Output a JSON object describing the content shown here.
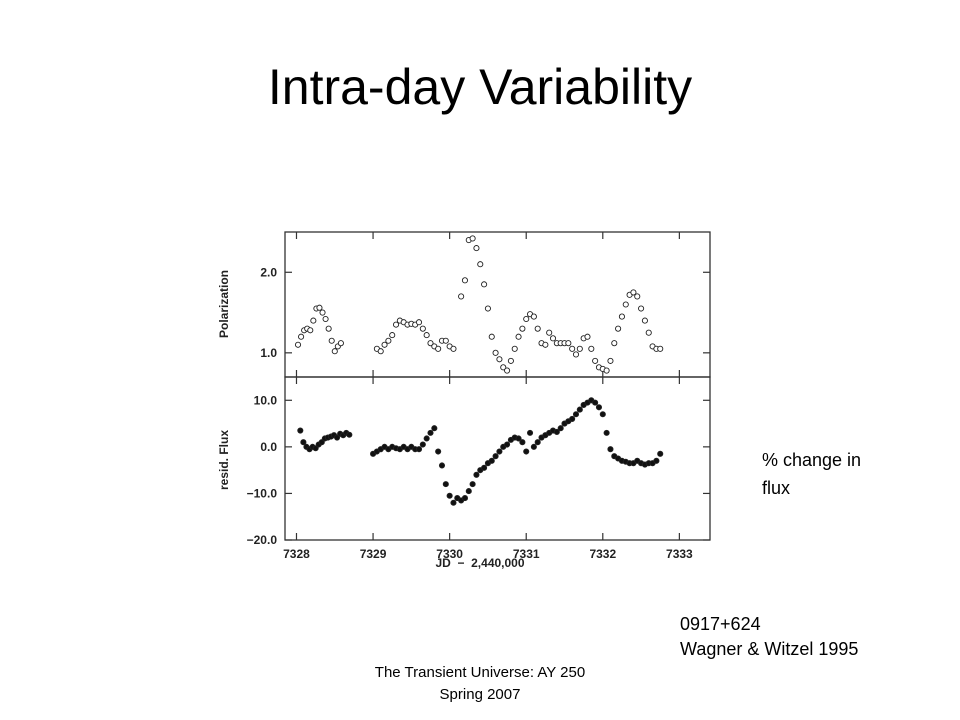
{
  "slide": {
    "title": "Intra-day Variability",
    "flux_note_line1": "% change in",
    "flux_note_line2": "flux",
    "source_object": "0917+624",
    "source_reference": "Wagner & Witzel 1995",
    "footer_line1": "The Transient Universe: AY 250",
    "footer_line2": "Spring 2007"
  },
  "chart_data": [
    {
      "type": "scatter",
      "panel": "top",
      "xlabel": "",
      "ylabel": "Polarization",
      "xlim": [
        7327.85,
        7333.4
      ],
      "ylim": [
        0.7,
        2.5
      ],
      "yticks": [
        1.0,
        2.0
      ],
      "ytick_labels": [
        "1.0",
        "2.0"
      ],
      "marker": "open-circle",
      "series": [
        {
          "x": [
            7328.02,
            7328.06,
            7328.1,
            7328.14,
            7328.18,
            7328.22,
            7328.26,
            7328.3,
            7328.34,
            7328.38,
            7328.42,
            7328.46,
            7328.5,
            7328.54,
            7328.58,
            7329.05,
            7329.1,
            7329.15,
            7329.2,
            7329.25,
            7329.3,
            7329.35,
            7329.4,
            7329.45,
            7329.5,
            7329.55,
            7329.6,
            7329.65,
            7329.7,
            7329.75,
            7329.8,
            7329.85,
            7329.9,
            7329.95,
            7330.0,
            7330.05,
            7330.15,
            7330.2,
            7330.25,
            7330.3,
            7330.35,
            7330.4,
            7330.45,
            7330.5,
            7330.55,
            7330.6,
            7330.65,
            7330.7,
            7330.75,
            7330.8,
            7330.85,
            7330.9,
            7330.95,
            7331.0,
            7331.05,
            7331.1,
            7331.15,
            7331.2,
            7331.25,
            7331.3,
            7331.35,
            7331.4,
            7331.45,
            7331.5,
            7331.55,
            7331.6,
            7331.65,
            7331.7,
            7331.75,
            7331.8,
            7331.85,
            7331.9,
            7331.95,
            7332.0,
            7332.05,
            7332.1,
            7332.15,
            7332.2,
            7332.25,
            7332.3,
            7332.35,
            7332.4,
            7332.45,
            7332.5,
            7332.55,
            7332.6,
            7332.65,
            7332.7,
            7332.75
          ],
          "y": [
            1.1,
            1.2,
            1.28,
            1.3,
            1.28,
            1.4,
            1.55,
            1.56,
            1.5,
            1.42,
            1.3,
            1.15,
            1.02,
            1.08,
            1.12,
            1.05,
            1.02,
            1.1,
            1.15,
            1.22,
            1.35,
            1.4,
            1.38,
            1.35,
            1.36,
            1.35,
            1.38,
            1.3,
            1.22,
            1.12,
            1.08,
            1.05,
            1.15,
            1.15,
            1.08,
            1.05,
            1.7,
            1.9,
            2.4,
            2.42,
            2.3,
            2.1,
            1.85,
            1.55,
            1.2,
            1.0,
            0.92,
            0.82,
            0.78,
            0.9,
            1.05,
            1.2,
            1.3,
            1.42,
            1.48,
            1.45,
            1.3,
            1.12,
            1.1,
            1.25,
            1.18,
            1.12,
            1.12,
            1.12,
            1.12,
            1.05,
            0.98,
            1.05,
            1.18,
            1.2,
            1.05,
            0.9,
            0.82,
            0.8,
            0.78,
            0.9,
            1.12,
            1.3,
            1.45,
            1.6,
            1.72,
            1.75,
            1.7,
            1.55,
            1.4,
            1.25,
            1.08,
            1.05,
            1.05
          ]
        }
      ]
    },
    {
      "type": "scatter",
      "panel": "bottom",
      "xlabel": "JD  −  2,440,000",
      "ylabel": "resid.  Flux",
      "xlim": [
        7327.85,
        7333.4
      ],
      "ylim": [
        -20.0,
        15.0
      ],
      "xticks": [
        7328,
        7329,
        7330,
        7331,
        7332,
        7333
      ],
      "xtick_labels": [
        "7328",
        "7329",
        "7330",
        "7331",
        "7332",
        "7333"
      ],
      "yticks": [
        -20.0,
        -10.0,
        0.0,
        10.0
      ],
      "ytick_labels": [
        "−20.0",
        "−10.0",
        "0.0",
        "10.0"
      ],
      "marker": "filled-circle",
      "series": [
        {
          "x": [
            7328.05,
            7328.09,
            7328.13,
            7328.17,
            7328.21,
            7328.25,
            7328.29,
            7328.33,
            7328.37,
            7328.41,
            7328.45,
            7328.49,
            7328.53,
            7328.57,
            7328.61,
            7328.65,
            7328.69,
            7329.0,
            7329.05,
            7329.1,
            7329.15,
            7329.2,
            7329.25,
            7329.3,
            7329.35,
            7329.4,
            7329.45,
            7329.5,
            7329.55,
            7329.6,
            7329.65,
            7329.7,
            7329.75,
            7329.8,
            7329.85,
            7329.9,
            7329.95,
            7330.0,
            7330.05,
            7330.1,
            7330.15,
            7330.2,
            7330.25,
            7330.3,
            7330.35,
            7330.4,
            7330.45,
            7330.5,
            7330.55,
            7330.6,
            7330.65,
            7330.7,
            7330.75,
            7330.8,
            7330.85,
            7330.9,
            7330.95,
            7331.0,
            7331.05,
            7331.1,
            7331.15,
            7331.2,
            7331.25,
            7331.3,
            7331.35,
            7331.4,
            7331.45,
            7331.5,
            7331.55,
            7331.6,
            7331.65,
            7331.7,
            7331.75,
            7331.8,
            7331.85,
            7331.9,
            7331.95,
            7332.0,
            7332.05,
            7332.1,
            7332.15,
            7332.2,
            7332.25,
            7332.3,
            7332.35,
            7332.4,
            7332.45,
            7332.5,
            7332.55,
            7332.6,
            7332.65,
            7332.7,
            7332.75
          ],
          "y": [
            3.5,
            1.0,
            0.0,
            -0.5,
            0.0,
            -0.3,
            0.5,
            1.0,
            1.8,
            2.0,
            2.2,
            2.5,
            2.0,
            2.8,
            2.5,
            3.0,
            2.6,
            -1.5,
            -1.0,
            -0.5,
            0.0,
            -0.5,
            0.0,
            -0.3,
            -0.5,
            0.0,
            -0.5,
            0.0,
            -0.5,
            -0.5,
            0.5,
            1.8,
            3.0,
            4.0,
            -1.0,
            -4.0,
            -8.0,
            -10.5,
            -12.0,
            -11.0,
            -11.5,
            -11.0,
            -9.5,
            -8.0,
            -6.0,
            -5.0,
            -4.5,
            -3.5,
            -3.0,
            -2.0,
            -1.0,
            0.0,
            0.5,
            1.5,
            2.0,
            1.8,
            1.0,
            -1.0,
            3.0,
            0.0,
            1.0,
            2.0,
            2.5,
            3.0,
            3.5,
            3.2,
            4.0,
            5.0,
            5.5,
            6.0,
            7.0,
            8.0,
            9.0,
            9.5,
            10.0,
            9.5,
            8.5,
            7.0,
            3.0,
            -0.5,
            -2.0,
            -2.5,
            -3.0,
            -3.2,
            -3.5,
            -3.5,
            -3.0,
            -3.5,
            -3.8,
            -3.5,
            -3.5,
            -3.0,
            -1.5
          ]
        }
      ]
    }
  ]
}
